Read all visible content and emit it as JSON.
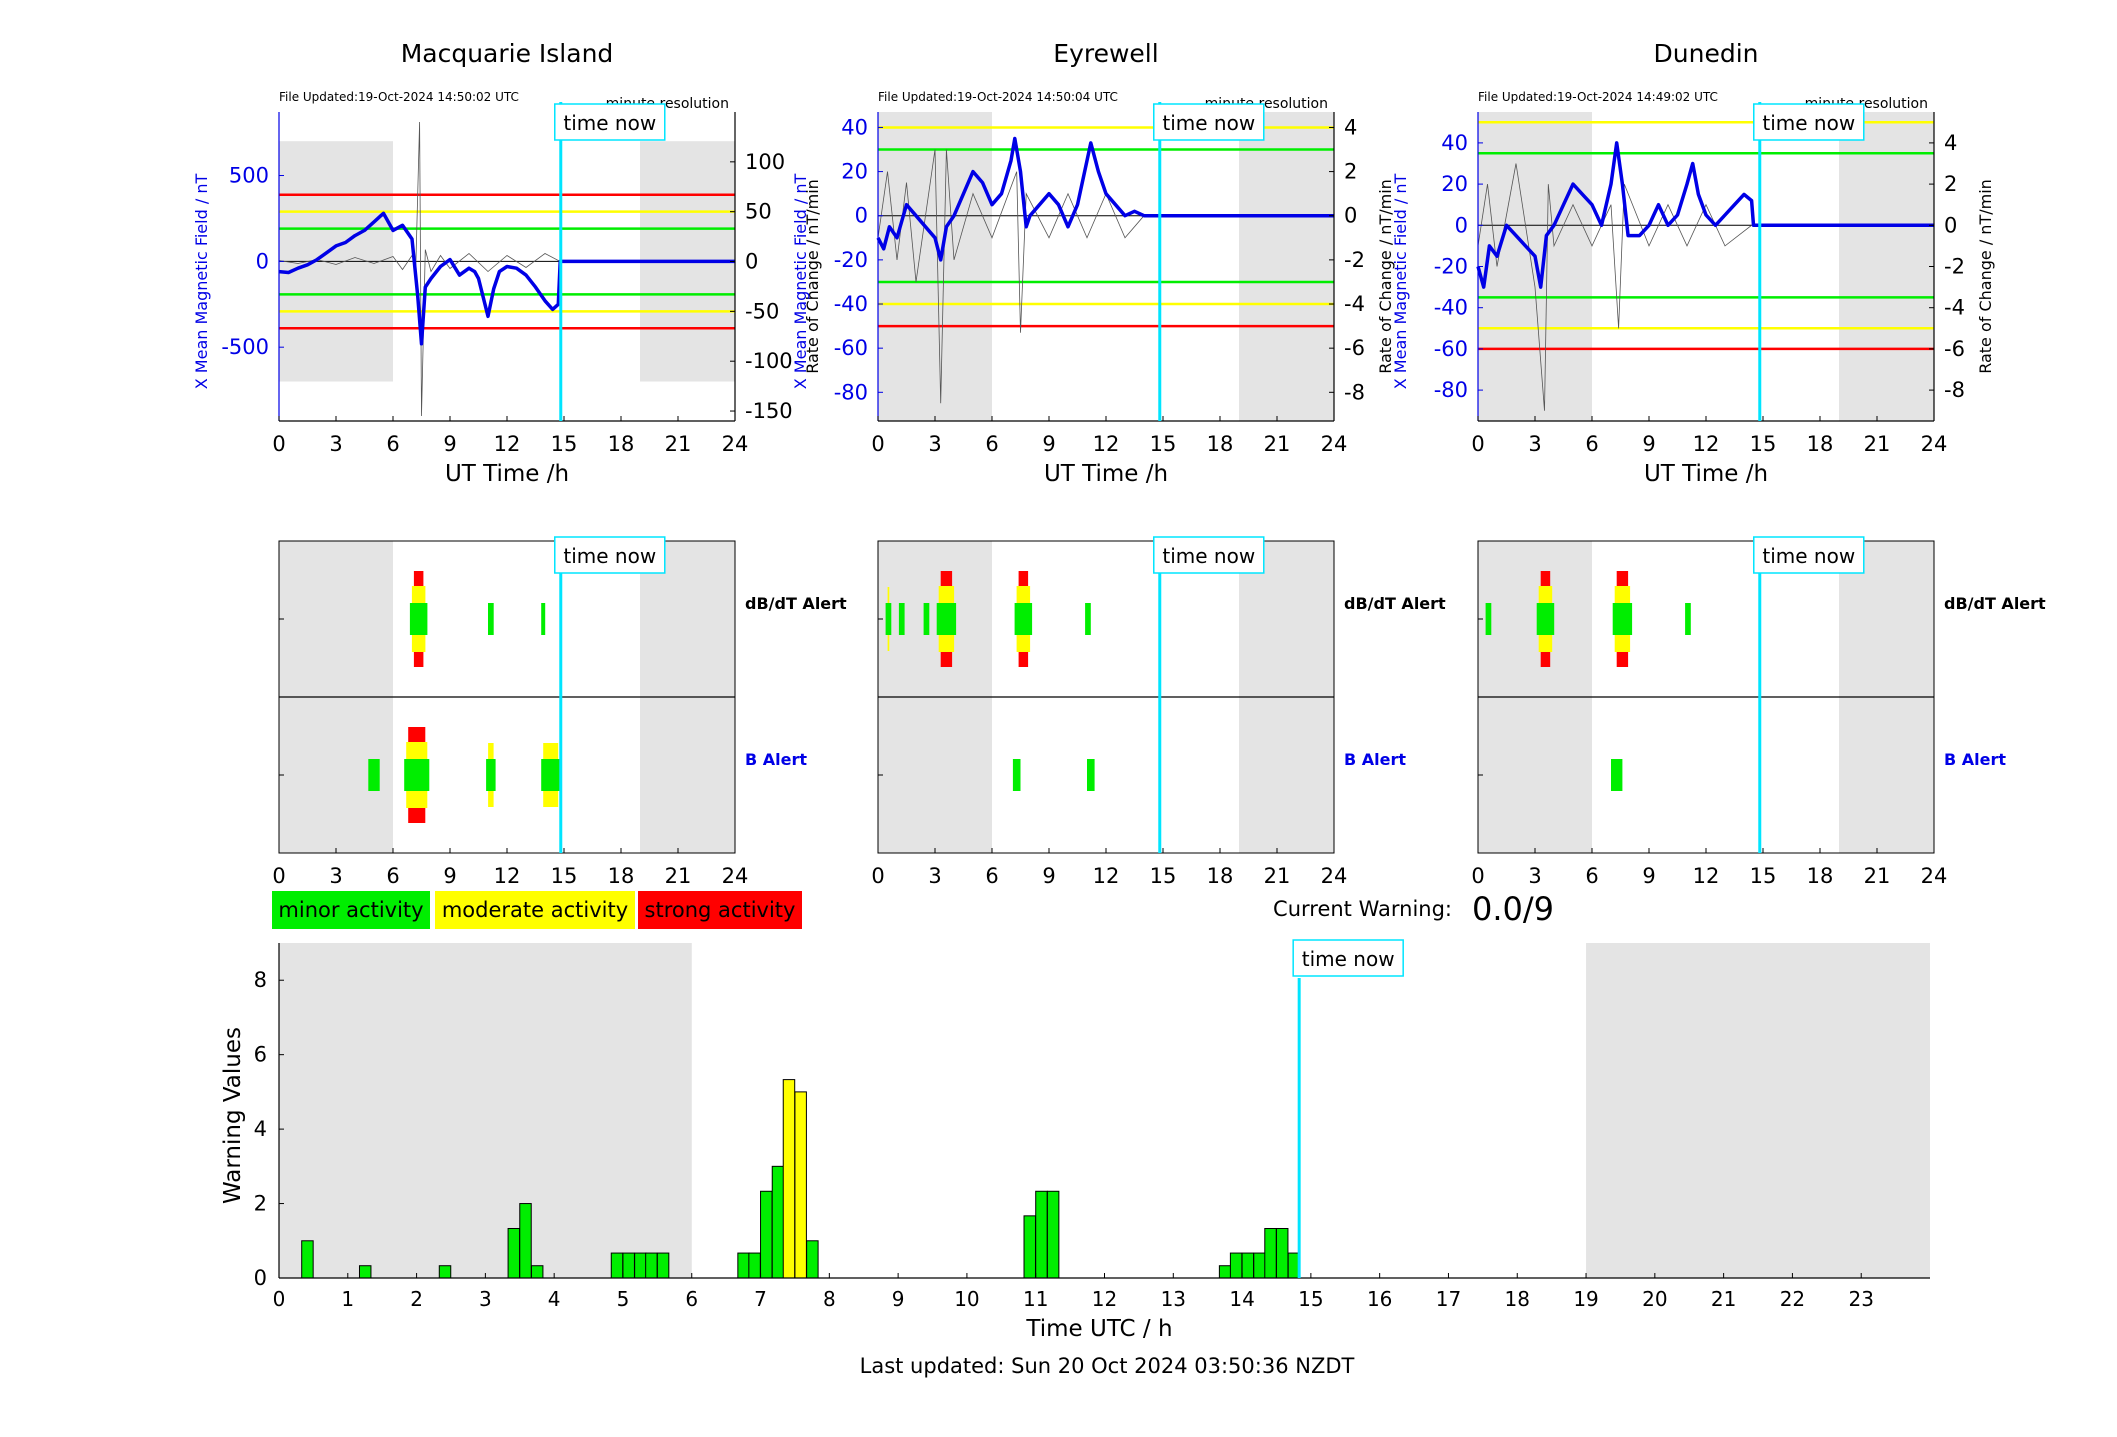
{
  "colors": {
    "blue": "#0000e6",
    "cyan": "#00e5ff",
    "green": "#00ee00",
    "yellow": "#ffff00",
    "red": "#ff0000",
    "night": "#e4e4e4",
    "grey_trace": "#555555"
  },
  "legend": {
    "minor": "minor activity",
    "moderate": "moderate activity",
    "strong": "strong activity"
  },
  "current_warning": {
    "label": "Current Warning:",
    "value": "0.0/9"
  },
  "time_now_label": "time now",
  "time_now_h": 14.83,
  "night_bands": [
    [
      0,
      6
    ],
    [
      19,
      24
    ]
  ],
  "top_xlabel": "UT Time /h",
  "top_xticks": [
    0,
    3,
    6,
    9,
    12,
    15,
    18,
    21,
    24
  ],
  "left_ylabel": "X Mean Magnetic Field / nT",
  "right_ylabel": "Rate of Change / nT/min",
  "alert_labels": {
    "dbdt": "dB/dT Alert",
    "b": "B Alert"
  },
  "stations": [
    {
      "name": "Macquarie Island",
      "file_updated": "File Updated:19-Oct-2024 14:50:02 UTC",
      "resolution": "minute resolution",
      "ylim_left": [
        -930,
        870
      ],
      "yticks_left": [
        -500,
        0,
        500
      ],
      "ylim_right": [
        -160,
        150
      ],
      "yticks_right": [
        -150,
        -100,
        -50,
        0,
        50,
        100
      ],
      "thresholds_right": [
        {
          "value": 67,
          "color": "red"
        },
        {
          "value": 50,
          "color": "yellow"
        },
        {
          "value": 33,
          "color": "green"
        },
        {
          "value": -33,
          "color": "green"
        },
        {
          "value": -50,
          "color": "yellow"
        },
        {
          "value": -67,
          "color": "red"
        }
      ],
      "field_trace": [
        [
          0,
          -60
        ],
        [
          0.5,
          -65
        ],
        [
          1,
          -40
        ],
        [
          1.5,
          -20
        ],
        [
          2,
          10
        ],
        [
          2.5,
          50
        ],
        [
          3,
          90
        ],
        [
          3.5,
          110
        ],
        [
          4,
          150
        ],
        [
          4.5,
          180
        ],
        [
          5,
          230
        ],
        [
          5.5,
          280
        ],
        [
          6,
          180
        ],
        [
          6.5,
          210
        ],
        [
          7,
          130
        ],
        [
          7.3,
          -200
        ],
        [
          7.5,
          -480
        ],
        [
          7.7,
          -150
        ],
        [
          8,
          -100
        ],
        [
          8.5,
          -30
        ],
        [
          9,
          10
        ],
        [
          9.5,
          -80
        ],
        [
          10,
          -40
        ],
        [
          10.3,
          -60
        ],
        [
          10.5,
          -100
        ],
        [
          11,
          -320
        ],
        [
          11.3,
          -160
        ],
        [
          11.6,
          -60
        ],
        [
          12,
          -30
        ],
        [
          12.5,
          -40
        ],
        [
          13,
          -80
        ],
        [
          13.5,
          -150
        ],
        [
          14,
          -230
        ],
        [
          14.4,
          -280
        ],
        [
          14.7,
          -250
        ],
        [
          14.8,
          0
        ],
        [
          24,
          0
        ]
      ],
      "rate_trace": [
        [
          0,
          1
        ],
        [
          1,
          -2
        ],
        [
          2,
          2
        ],
        [
          3,
          -3
        ],
        [
          4,
          4
        ],
        [
          5,
          -2
        ],
        [
          6,
          5
        ],
        [
          6.5,
          -8
        ],
        [
          7,
          6
        ],
        [
          7.2,
          -5
        ],
        [
          7.4,
          140
        ],
        [
          7.5,
          -155
        ],
        [
          7.7,
          12
        ],
        [
          8,
          -10
        ],
        [
          8.5,
          6
        ],
        [
          9,
          -7
        ],
        [
          10,
          8
        ],
        [
          11,
          -10
        ],
        [
          12,
          6
        ],
        [
          13,
          -6
        ],
        [
          14,
          8
        ],
        [
          14.8,
          0
        ],
        [
          24,
          0
        ]
      ],
      "dbdt_alerts": [
        {
          "t0": 7.1,
          "t1": 7.6,
          "level": "strong"
        },
        {
          "t0": 11.0,
          "t1": 11.3,
          "level": "minor"
        },
        {
          "t0": 13.8,
          "t1": 14.0,
          "level": "minor"
        }
      ],
      "b_alerts": [
        {
          "t0": 4.7,
          "t1": 5.3,
          "level": "minor"
        },
        {
          "t0": 6.8,
          "t1": 7.7,
          "level": "strong"
        },
        {
          "t0": 10.9,
          "t1": 11.4,
          "level": "moderate"
        },
        {
          "t0": 13.8,
          "t1": 14.8,
          "level": "moderate"
        }
      ]
    },
    {
      "name": "Eyrewell",
      "file_updated": "File Updated:19-Oct-2024 14:50:04 UTC",
      "resolution": "minute resolution",
      "ylim_left": [
        -93,
        47
      ],
      "yticks_left": [
        -80,
        -60,
        -40,
        -20,
        0,
        20,
        40
      ],
      "ylim_right": [
        -9.3,
        4.7
      ],
      "yticks_right": [
        -8,
        -6,
        -4,
        -2,
        0,
        2,
        4
      ],
      "thresholds_left": [
        {
          "value": 40,
          "color": "yellow"
        },
        {
          "value": 30,
          "color": "green"
        },
        {
          "value": -30,
          "color": "green"
        },
        {
          "value": -40,
          "color": "yellow"
        },
        {
          "value": -50,
          "color": "red"
        }
      ],
      "field_trace": [
        [
          0,
          -10
        ],
        [
          0.3,
          -15
        ],
        [
          0.6,
          -5
        ],
        [
          1,
          -10
        ],
        [
          1.5,
          5
        ],
        [
          2,
          0
        ],
        [
          2.5,
          -5
        ],
        [
          3,
          -10
        ],
        [
          3.3,
          -20
        ],
        [
          3.6,
          -5
        ],
        [
          4,
          0
        ],
        [
          4.5,
          10
        ],
        [
          5,
          20
        ],
        [
          5.5,
          15
        ],
        [
          6,
          5
        ],
        [
          6.5,
          10
        ],
        [
          7,
          25
        ],
        [
          7.2,
          35
        ],
        [
          7.5,
          20
        ],
        [
          7.8,
          -5
        ],
        [
          8,
          0
        ],
        [
          8.5,
          5
        ],
        [
          9,
          10
        ],
        [
          9.5,
          5
        ],
        [
          10,
          -5
        ],
        [
          10.5,
          5
        ],
        [
          11,
          25
        ],
        [
          11.2,
          33
        ],
        [
          11.6,
          20
        ],
        [
          12,
          10
        ],
        [
          12.5,
          5
        ],
        [
          13,
          0
        ],
        [
          13.5,
          2
        ],
        [
          14,
          0
        ],
        [
          24,
          0
        ]
      ],
      "rate_trace": [
        [
          0,
          -1
        ],
        [
          0.5,
          2
        ],
        [
          1,
          -2
        ],
        [
          1.5,
          1.5
        ],
        [
          2,
          -3
        ],
        [
          3,
          3
        ],
        [
          3.3,
          -8.5
        ],
        [
          3.6,
          3
        ],
        [
          4,
          -2
        ],
        [
          5,
          1
        ],
        [
          6,
          -1
        ],
        [
          7.3,
          2
        ],
        [
          7.5,
          -5.3
        ],
        [
          7.8,
          1
        ],
        [
          9,
          -1
        ],
        [
          10,
          1
        ],
        [
          11,
          -1
        ],
        [
          12,
          1
        ],
        [
          13,
          -1
        ],
        [
          14,
          0
        ],
        [
          24,
          0
        ]
      ],
      "dbdt_alerts": [
        {
          "t0": 0.4,
          "t1": 0.7,
          "level": "moderate"
        },
        {
          "t0": 1.1,
          "t1": 1.4,
          "level": "minor"
        },
        {
          "t0": 2.4,
          "t1": 2.7,
          "level": "minor"
        },
        {
          "t0": 3.3,
          "t1": 3.9,
          "level": "strong"
        },
        {
          "t0": 7.4,
          "t1": 7.9,
          "level": "strong"
        },
        {
          "t0": 10.9,
          "t1": 11.2,
          "level": "minor"
        }
      ],
      "b_alerts": [
        {
          "t0": 7.1,
          "t1": 7.5,
          "level": "minor"
        },
        {
          "t0": 11.0,
          "t1": 11.4,
          "level": "minor"
        }
      ]
    },
    {
      "name": "Dunedin",
      "file_updated": "File Updated:19-Oct-2024 14:49:02 UTC",
      "resolution": "minute resolution",
      "ylim_left": [
        -95,
        55
      ],
      "yticks_left": [
        -80,
        -60,
        -40,
        -20,
        0,
        20,
        40
      ],
      "ylim_right": [
        -9.5,
        5.5
      ],
      "yticks_right": [
        -8,
        -6,
        -4,
        -2,
        0,
        2,
        4
      ],
      "thresholds_left": [
        {
          "value": 50,
          "color": "yellow"
        },
        {
          "value": 35,
          "color": "green"
        },
        {
          "value": -35,
          "color": "green"
        },
        {
          "value": -50,
          "color": "yellow"
        },
        {
          "value": -60,
          "color": "red"
        }
      ],
      "field_trace": [
        [
          0,
          -20
        ],
        [
          0.3,
          -30
        ],
        [
          0.6,
          -10
        ],
        [
          1,
          -15
        ],
        [
          1.5,
          0
        ],
        [
          2,
          -5
        ],
        [
          2.5,
          -10
        ],
        [
          3,
          -15
        ],
        [
          3.3,
          -30
        ],
        [
          3.6,
          -5
        ],
        [
          4,
          0
        ],
        [
          4.5,
          10
        ],
        [
          5,
          20
        ],
        [
          5.5,
          15
        ],
        [
          6,
          10
        ],
        [
          6.5,
          0
        ],
        [
          7,
          20
        ],
        [
          7.3,
          40
        ],
        [
          7.6,
          20
        ],
        [
          7.9,
          -5
        ],
        [
          8.5,
          -5
        ],
        [
          9,
          0
        ],
        [
          9.5,
          10
        ],
        [
          10,
          0
        ],
        [
          10.5,
          5
        ],
        [
          11,
          20
        ],
        [
          11.3,
          30
        ],
        [
          11.6,
          15
        ],
        [
          12,
          5
        ],
        [
          12.5,
          0
        ],
        [
          13,
          5
        ],
        [
          13.5,
          10
        ],
        [
          14,
          15
        ],
        [
          14.4,
          12
        ],
        [
          14.5,
          0
        ],
        [
          24,
          0
        ]
      ],
      "rate_trace": [
        [
          0,
          -1
        ],
        [
          0.5,
          2
        ],
        [
          1,
          -2
        ],
        [
          2,
          3
        ],
        [
          3,
          -3
        ],
        [
          3.5,
          -9
        ],
        [
          3.7,
          2
        ],
        [
          4,
          -1
        ],
        [
          5,
          1
        ],
        [
          6,
          -1
        ],
        [
          7,
          1
        ],
        [
          7.4,
          -5
        ],
        [
          7.7,
          2
        ],
        [
          9,
          -1
        ],
        [
          10,
          1
        ],
        [
          11,
          -1
        ],
        [
          12,
          1
        ],
        [
          13,
          -1
        ],
        [
          14.4,
          0
        ],
        [
          24,
          0
        ]
      ],
      "dbdt_alerts": [
        {
          "t0": 0.4,
          "t1": 0.7,
          "level": "minor"
        },
        {
          "t0": 3.3,
          "t1": 3.8,
          "level": "strong"
        },
        {
          "t0": 7.3,
          "t1": 7.9,
          "level": "strong"
        },
        {
          "t0": 10.9,
          "t1": 11.2,
          "level": "minor"
        }
      ],
      "b_alerts": [
        {
          "t0": 7.0,
          "t1": 7.6,
          "level": "minor"
        }
      ]
    }
  ],
  "chart_data": {
    "type": "bar",
    "title": "",
    "xlabel": "Time UTC / h",
    "ylabel": "Warning Values",
    "xlim": [
      0,
      24
    ],
    "ylim": [
      0,
      9
    ],
    "xticks": [
      0,
      1,
      2,
      3,
      4,
      5,
      6,
      7,
      8,
      9,
      10,
      11,
      12,
      13,
      14,
      15,
      16,
      17,
      18,
      19,
      20,
      21,
      22,
      23
    ],
    "yticks": [
      0,
      2,
      4,
      6,
      8
    ],
    "bar_width_h": 0.1667,
    "bars": [
      {
        "x": 0.33,
        "value": 1.0,
        "level": "minor"
      },
      {
        "x": 1.17,
        "value": 0.33,
        "level": "minor"
      },
      {
        "x": 2.33,
        "value": 0.33,
        "level": "minor"
      },
      {
        "x": 3.33,
        "value": 1.33,
        "level": "minor"
      },
      {
        "x": 3.5,
        "value": 2.0,
        "level": "minor"
      },
      {
        "x": 3.67,
        "value": 0.33,
        "level": "minor"
      },
      {
        "x": 4.83,
        "value": 0.67,
        "level": "minor"
      },
      {
        "x": 5.0,
        "value": 0.67,
        "level": "minor"
      },
      {
        "x": 5.17,
        "value": 0.67,
        "level": "minor"
      },
      {
        "x": 5.33,
        "value": 0.67,
        "level": "minor"
      },
      {
        "x": 5.5,
        "value": 0.67,
        "level": "minor"
      },
      {
        "x": 6.67,
        "value": 0.67,
        "level": "minor"
      },
      {
        "x": 6.83,
        "value": 0.67,
        "level": "minor"
      },
      {
        "x": 7.0,
        "value": 2.33,
        "level": "minor"
      },
      {
        "x": 7.17,
        "value": 3.0,
        "level": "minor"
      },
      {
        "x": 7.33,
        "value": 5.33,
        "level": "moderate"
      },
      {
        "x": 7.5,
        "value": 5.0,
        "level": "moderate"
      },
      {
        "x": 7.67,
        "value": 1.0,
        "level": "minor"
      },
      {
        "x": 10.83,
        "value": 1.67,
        "level": "minor"
      },
      {
        "x": 11.0,
        "value": 2.33,
        "level": "minor"
      },
      {
        "x": 11.17,
        "value": 2.33,
        "level": "minor"
      },
      {
        "x": 13.67,
        "value": 0.33,
        "level": "minor"
      },
      {
        "x": 13.83,
        "value": 0.67,
        "level": "minor"
      },
      {
        "x": 14.0,
        "value": 0.67,
        "level": "minor"
      },
      {
        "x": 14.17,
        "value": 0.67,
        "level": "minor"
      },
      {
        "x": 14.33,
        "value": 1.33,
        "level": "minor"
      },
      {
        "x": 14.5,
        "value": 1.33,
        "level": "minor"
      },
      {
        "x": 14.67,
        "value": 0.67,
        "level": "minor"
      }
    ]
  },
  "footer": {
    "last_updated": "Last updated: Sun 20 Oct 2024 03:50:36 NZDT"
  }
}
